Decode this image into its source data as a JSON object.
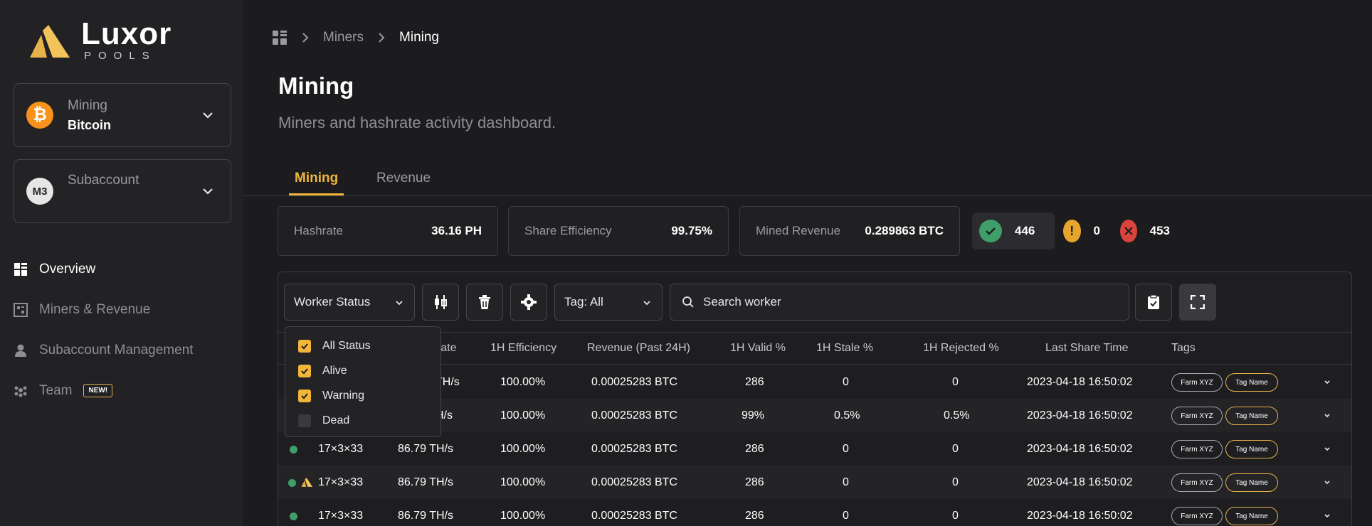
{
  "brand": {
    "name": "Luxor",
    "sub": "POOLS",
    "accent": "#f1b53a"
  },
  "sidebar": {
    "mining_select": {
      "label": "Mining",
      "value": "Bitcoin",
      "icon": "bitcoin-icon"
    },
    "subaccount_select": {
      "label": "Subaccount",
      "avatar": "M3"
    },
    "nav": [
      {
        "label": "Overview",
        "icon": "grid-icon",
        "active": true
      },
      {
        "label": "Miners & Revenue",
        "icon": "qr-icon"
      },
      {
        "label": "Subaccount Management",
        "icon": "user-icon"
      },
      {
        "label": "Team",
        "icon": "team-icon",
        "badge": "NEW!"
      }
    ]
  },
  "breadcrumb": {
    "items": [
      "Miners",
      "Mining"
    ]
  },
  "page": {
    "title": "Mining",
    "subtitle": "Miners and hashrate activity dashboard."
  },
  "tabs": [
    {
      "label": "Mining",
      "active": true
    },
    {
      "label": "Revenue"
    }
  ],
  "stats": {
    "hashrate": {
      "label": "Hashrate",
      "value": "36.16 PH"
    },
    "efficiency": {
      "label": "Share Efficiency",
      "value": "99.75%"
    },
    "revenue": {
      "label": "Mined Revenue",
      "value": "0.289863 BTC"
    }
  },
  "worker_counts": {
    "alive": "446",
    "warning": "0",
    "dead": "453",
    "colors": {
      "alive": "#3f9f6a",
      "warning": "#e8a52e",
      "dead": "#d9443f"
    }
  },
  "toolbar": {
    "worker_status": "Worker Status",
    "tag_filter": "Tag: All",
    "search_placeholder": "Search worker"
  },
  "status_menu": {
    "options": [
      {
        "label": "All Status",
        "checked": true
      },
      {
        "label": "Alive",
        "checked": true
      },
      {
        "label": "Warning",
        "checked": true
      },
      {
        "label": "Dead",
        "checked": false
      }
    ]
  },
  "table": {
    "headers": {
      "hashrate": "hrate",
      "efficiency": "1H Efficiency",
      "revenue": "Revenue (Past 24H)",
      "valid": "1H Valid %",
      "stale": "1H Stale %",
      "rejected": "1H Rejected %",
      "last_share": "Last Share Time",
      "tags": "Tags"
    },
    "rows": [
      {
        "worker": "",
        "hashrate": "TH/s",
        "efficiency": "100.00%",
        "revenue": "0.00025283 BTC",
        "valid": "286",
        "stale": "0",
        "rejected": "0",
        "last_share": "2023-04-18 16:50:02",
        "tag1": "Farm XYZ",
        "tag2": "Tag Name"
      },
      {
        "worker": "",
        "hashrate": "H/s",
        "efficiency": "100.00%",
        "revenue": "0.00025283 BTC",
        "valid": "99%",
        "stale": "0.5%",
        "rejected": "0.5%",
        "last_share": "2023-04-18 16:50:02",
        "tag1": "Farm XYZ",
        "tag2": "Tag Name"
      },
      {
        "worker": "17×3×33",
        "hashrate": "86.79 TH/s",
        "efficiency": "100.00%",
        "revenue": "0.00025283 BTC",
        "valid": "286",
        "stale": "0",
        "rejected": "0",
        "last_share": "2023-04-18 16:50:02",
        "tag1": "Farm XYZ",
        "tag2": "Tag Name"
      },
      {
        "worker": "17×3×33",
        "hashrate": "86.79 TH/s",
        "efficiency": "100.00%",
        "revenue": "0.00025283 BTC",
        "valid": "286",
        "stale": "0",
        "rejected": "0",
        "last_share": "2023-04-18 16:50:02",
        "tag1": "Farm XYZ",
        "tag2": "Tag Name"
      },
      {
        "worker": "17×3×33",
        "hashrate": "86.79 TH/s",
        "efficiency": "100.00%",
        "revenue": "0.00025283 BTC",
        "valid": "286",
        "stale": "0",
        "rejected": "0",
        "last_share": "2023-04-18 16:50:02",
        "tag1": "Farm XYZ",
        "tag2": "Tag Name"
      }
    ]
  }
}
